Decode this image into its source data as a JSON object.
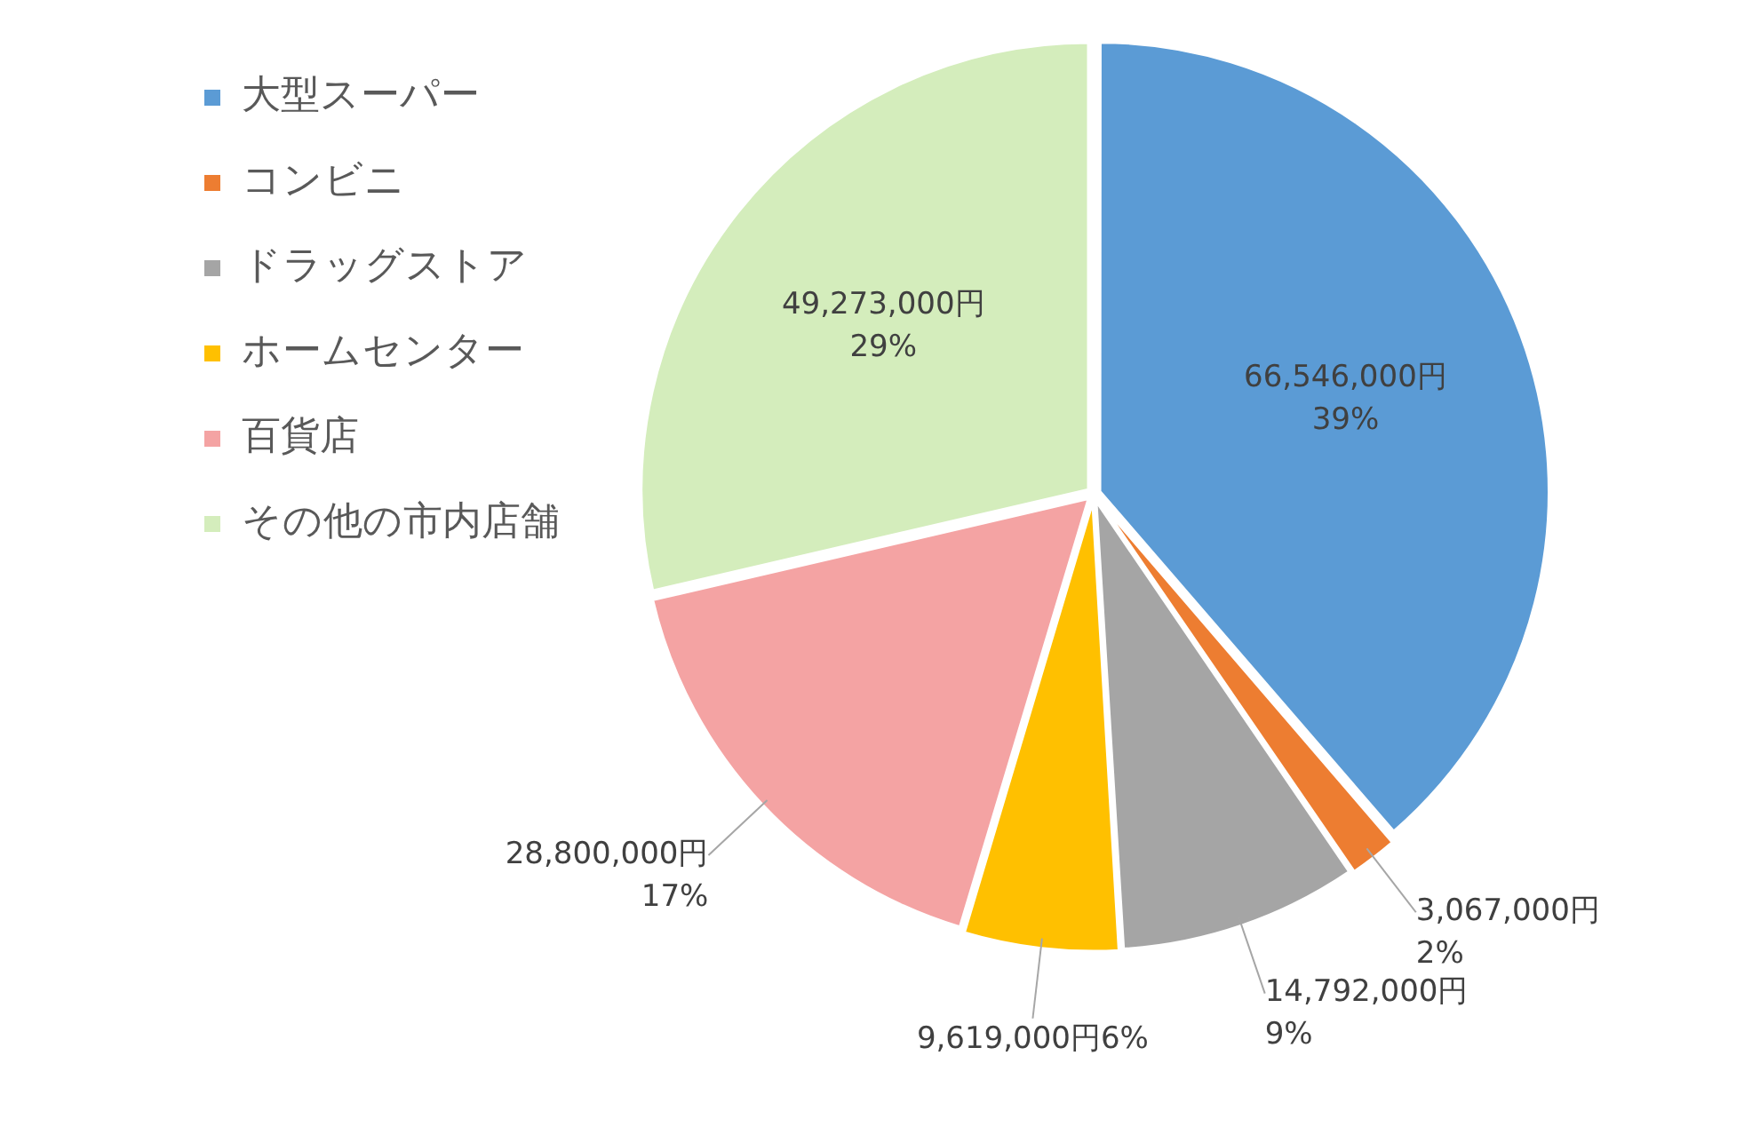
{
  "chart_data": {
    "type": "pie",
    "categories": [
      "大型スーパー",
      "コンビニ",
      "ドラッグストア",
      "ホームセンター",
      "百貨店",
      "その他の市内店舗"
    ],
    "values": [
      66546000,
      3067000,
      14792000,
      9619000,
      28800000,
      49273000
    ],
    "colors": [
      "#5b9bd5",
      "#ed7d31",
      "#a5a5a5",
      "#ffc000",
      "#f4a3a3",
      "#d4edbc"
    ],
    "value_labels": [
      "66,546,000円\n39%",
      "3,067,000円\n2%",
      "14,792,000円\n9%",
      "9,619,000円6%",
      "28,800,000円\n17%",
      "49,273,000円\n29%"
    ],
    "legend": "top left"
  }
}
